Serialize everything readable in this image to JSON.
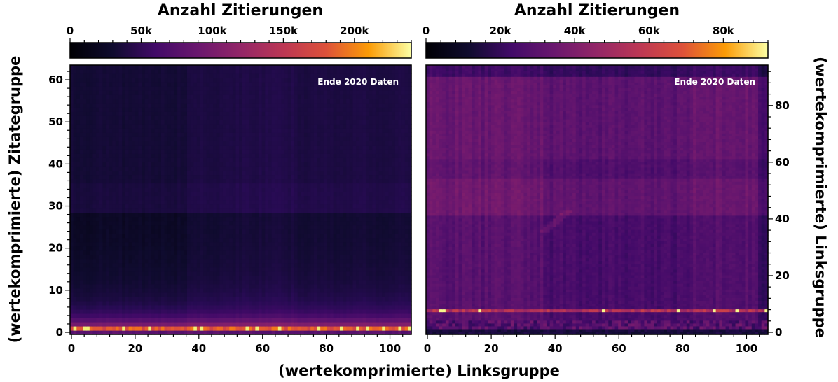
{
  "chart_data": [
    {
      "type": "heatmap",
      "title": "Anzahl Zitierungen",
      "annotation": "Ende 2020 Daten",
      "colormap": "inferno",
      "colorbar": {
        "range": [
          0,
          240000
        ],
        "ticks": [
          0,
          50000,
          100000,
          150000,
          200000
        ],
        "tick_labels": [
          "0",
          "50k",
          "100k",
          "150k",
          "200k"
        ],
        "position": "top"
      },
      "xlabel": "(wertekomprimierte) Linksgruppe",
      "ylabel": "(wertekomprimierte) Zitategruppe",
      "xlim": [
        0,
        105
      ],
      "ylim": [
        0,
        64
      ],
      "x_ticks": [
        0,
        20,
        40,
        60,
        80,
        100
      ],
      "y_ticks": [
        0,
        10,
        20,
        30,
        40,
        50,
        60
      ],
      "y_axis_side": "left",
      "block_boundaries": {
        "x": 35.5,
        "y": 28.5
      },
      "bright_row_y": 1,
      "bright_row_x": [
        1,
        4,
        5,
        16,
        24,
        38,
        40,
        54,
        57,
        64,
        76,
        83,
        88,
        91,
        96,
        101,
        104
      ]
    },
    {
      "type": "heatmap",
      "title": "Anzahl Zitierungen",
      "annotation": "Ende 2020 Daten",
      "colormap": "inferno",
      "colorbar": {
        "range": [
          0,
          92000
        ],
        "ticks": [
          0,
          20000,
          40000,
          60000,
          80000
        ],
        "tick_labels": [
          "0",
          "20k",
          "40k",
          "60k",
          "80k"
        ],
        "position": "top"
      },
      "xlabel": "(wertekomprimierte) Linksgruppe",
      "ylabel": "(wertekomprimierte) Linksgruppe",
      "xlim": [
        0,
        105
      ],
      "ylim": [
        0,
        95
      ],
      "x_ticks": [
        0,
        20,
        40,
        60,
        80,
        100
      ],
      "y_ticks": [
        0,
        20,
        40,
        60,
        80
      ],
      "y_axis_side": "right",
      "block_boundaries": {
        "x": 35.5,
        "y": 41.5
      },
      "bright_row_y": 8,
      "bright_row_x": [
        4,
        5,
        16,
        54,
        77,
        88,
        95,
        104
      ]
    }
  ]
}
